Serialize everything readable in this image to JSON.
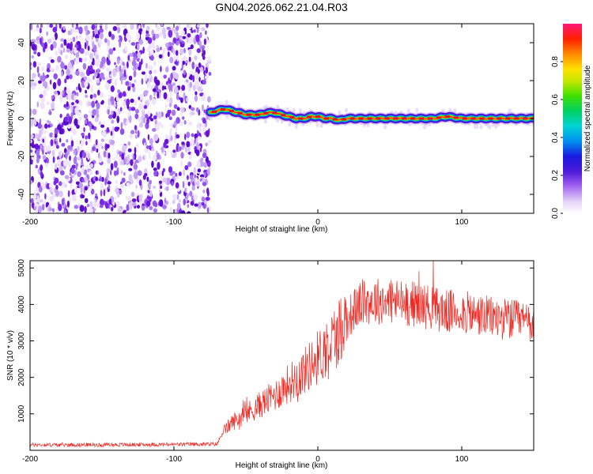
{
  "page_title": "GN04.2026.062.21.04.R03",
  "colors": {
    "background": "#ffffff",
    "noise_purple": "#7a26e8",
    "snr_line": "#ee2a24"
  },
  "chart_data": [
    {
      "type": "heatmap",
      "name": "spectrogram",
      "xlabel": "Height of straight line (km)",
      "ylabel": "Frequency (Hz)",
      "xlim": [
        -200,
        150
      ],
      "ylim": [
        -50,
        50
      ],
      "xticks": [
        -200,
        -100,
        0,
        100
      ],
      "yticks": [
        40,
        20,
        0,
        -20,
        -40
      ],
      "noise_region_x": [
        -200,
        -75
      ],
      "signal_trace": {
        "x": [
          -75,
          -70,
          -65,
          -60,
          -55,
          -50,
          -45,
          -40,
          -35,
          -30,
          -25,
          -20,
          -15,
          -10,
          -5,
          0,
          5,
          10,
          15,
          20,
          25,
          30,
          40,
          50,
          60,
          70,
          80,
          90,
          100,
          110,
          120,
          130,
          140,
          150
        ],
        "freq": [
          3,
          4,
          5,
          4,
          3,
          2,
          2,
          2,
          3,
          3,
          2,
          1,
          0,
          0,
          1,
          1,
          0,
          0,
          -1,
          0,
          0,
          0,
          0,
          0,
          0,
          0,
          0,
          1,
          0,
          0,
          0,
          0,
          0,
          0
        ]
      },
      "colorbar": {
        "label": "Normalized spectral amplitude",
        "range": [
          0,
          1
        ],
        "ticks": [
          0.0,
          0.2,
          0.4,
          0.6,
          0.8
        ],
        "tick_labels": [
          "0.0",
          "0.2",
          "0.4",
          "0.6",
          "0.8"
        ]
      }
    },
    {
      "type": "line",
      "name": "snr",
      "xlabel": "Height of straight line (km)",
      "ylabel": "SNR (10 * v/v)",
      "xlim": [
        -200,
        150
      ],
      "ylim": [
        0,
        5200
      ],
      "xticks": [
        -200,
        -100,
        0,
        100
      ],
      "yticks": [
        1000,
        2000,
        3000,
        4000,
        5000
      ],
      "series": [
        {
          "name": "SNR",
          "envelope": {
            "x": [
              -200,
              -150,
              -100,
              -70,
              -66,
              -60,
              -50,
              -40,
              -30,
              -20,
              -10,
              0,
              10,
              20,
              30,
              40,
              50,
              60,
              70,
              80,
              90,
              100,
              110,
              120,
              130,
              140,
              150
            ],
            "y": [
              150,
              150,
              160,
              170,
              500,
              750,
              1000,
              1250,
              1500,
              1850,
              2150,
              2550,
              3000,
              3600,
              4050,
              4100,
              4100,
              4050,
              4000,
              3900,
              3800,
              3800,
              3700,
              3650,
              3600,
              3550,
              3500
            ]
          }
        }
      ]
    }
  ]
}
